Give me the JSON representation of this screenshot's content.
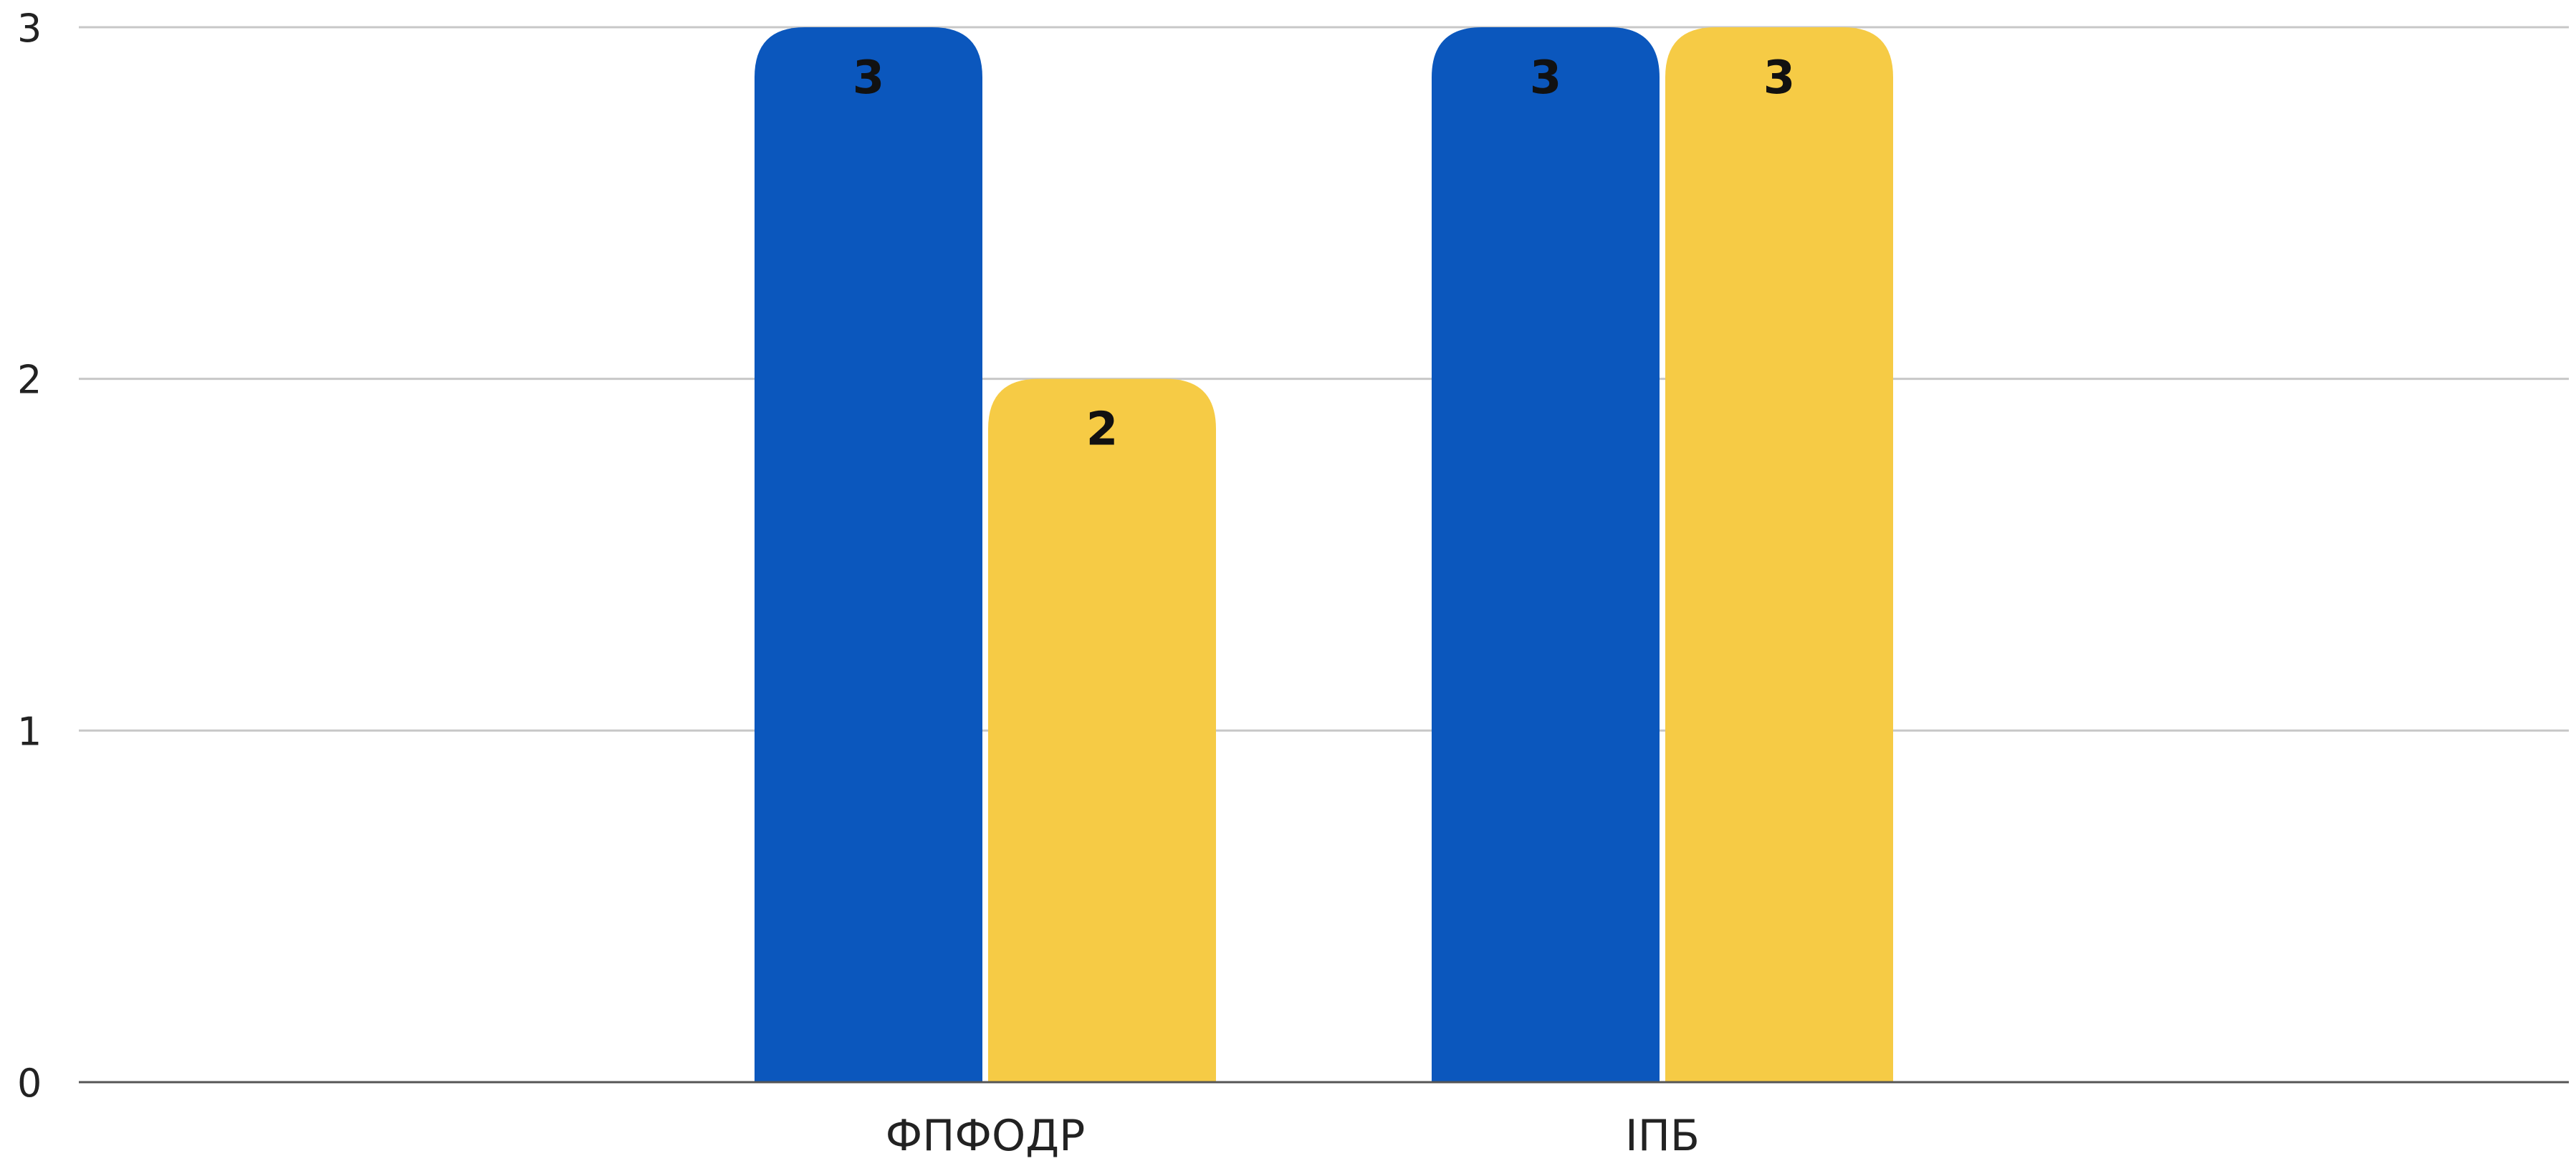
{
  "chart_data": {
    "type": "bar",
    "categories": [
      "ФПФОДР",
      "ІПБ"
    ],
    "series": [
      {
        "values": [
          3,
          3
        ],
        "color": "#0b57bd"
      },
      {
        "values": [
          2,
          3
        ],
        "color": "#f6cb45"
      }
    ],
    "ylim": [
      0,
      3
    ],
    "yticks": [
      0,
      1,
      2,
      3
    ],
    "grid": true,
    "legend": "none",
    "data_labels": true,
    "title": "",
    "xlabel": "",
    "ylabel": ""
  }
}
